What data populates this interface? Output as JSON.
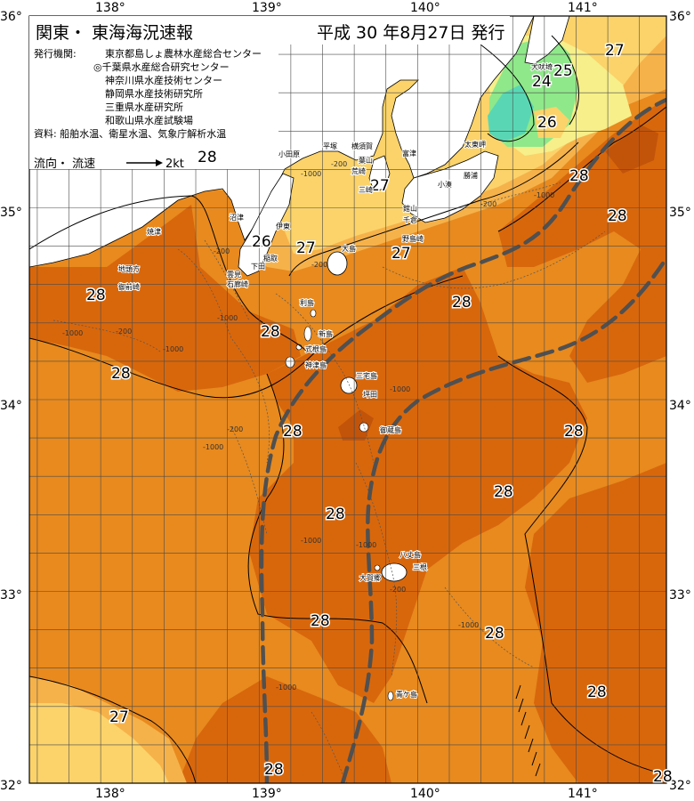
{
  "header": {
    "title": "関東・ 東海海況速報",
    "date": "平成 30 年8月27日 発行"
  },
  "issuers": {
    "label": "発行機関:",
    "list": [
      "東京都島しょ農林水産総合センター",
      "◎千葉県水産総合研究センター",
      "神奈川県水産技術センター",
      "静岡県水産技術研究所",
      "三重県水産研究所",
      "和歌山県水産試験場"
    ],
    "sources": "資料: 船舶水温、衛星水温、気象庁解析水温"
  },
  "legend": {
    "flow_label": "流向・ 流速",
    "speed_label": "2kt",
    "temp_value": "28"
  },
  "axes": {
    "lon_ticks": [
      "138°",
      "139°",
      "140°",
      "141°"
    ],
    "lat_ticks": [
      "36°",
      "35°",
      "34°",
      "33°",
      "32°"
    ],
    "corner_top_left": "36°",
    "corner_top_right": "36°",
    "corner_bottom_left": "32°",
    "corner_bottom_right": "32°"
  },
  "colors": {
    "sea_28_29": "#e88a1e",
    "sea_29_plus": "#d8670c",
    "sea_27_28": "#f6b24a",
    "sea_26_27": "#fbd36a",
    "sea_25_26": "#f6ef8a",
    "sea_24_25": "#8fe88a",
    "sea_lt_24": "#59d7b4",
    "land": "#ffffff",
    "kuroshio_axis": "#505050"
  },
  "temperature_labels": [
    "27",
    "25",
    "24",
    "26",
    "28",
    "27",
    "26",
    "27",
    "27",
    "28",
    "28",
    "28",
    "28",
    "28",
    "28",
    "28",
    "28",
    "28",
    "28",
    "28",
    "27",
    "28",
    "28",
    "28"
  ],
  "depth_labels": [
    "-1000",
    "-200",
    "-1000",
    "-200",
    "-1000",
    "-200",
    "-200",
    "-1000",
    "-200",
    "-1000",
    "-1000",
    "-1000",
    "-1000",
    "-1000",
    "-200",
    "-1000",
    "-200",
    "-1000"
  ],
  "places": {
    "yaizu": "焼津",
    "jitoukata": "地頭方",
    "omaezaki": "御前崎",
    "numazu": "沼津",
    "ito": "伊東",
    "inatori": "稲取",
    "shimoda": "下田",
    "kumomi": "雲見",
    "irozaki": "石廊崎",
    "odawara": "小田原",
    "hiratsuka": "平塚",
    "yokosuka": "横須賀",
    "hayama": "葉山",
    "araisaki": "荒崎",
    "misaki": "三崎",
    "futtsu": "富津",
    "tateyama": "館山",
    "chikura": "千倉",
    "kominato": "小湊",
    "katsuura": "勝浦",
    "nojimazaki": "野島崎",
    "taitomisaki": "太東岬",
    "inubozaki": "犬吠埼",
    "oshima": "大島",
    "toshima": "利島",
    "niijima": "新島",
    "shikinejima": "式根島",
    "kozushima": "神津島",
    "miyakejima": "三宅島",
    "tsubota": "坪田",
    "mikurajima": "御蔵島",
    "hachijojima": "八丈島",
    "mitsune": "三根",
    "okago": "大賀郷",
    "aogashima": "青ケ島"
  }
}
